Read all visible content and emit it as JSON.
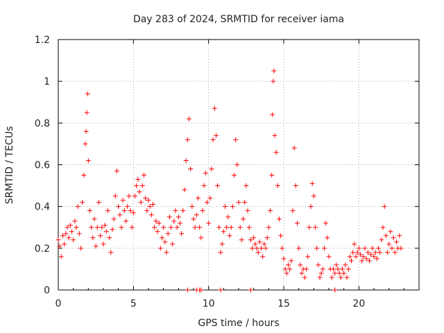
{
  "chart_data": {
    "type": "scatter",
    "title": "Day 283 of 2024, SRMTID for receiver iama",
    "xlabel": "GPS time / hours",
    "ylabel": "SRMTID / TECUs",
    "xlim": [
      0,
      24
    ],
    "ylim": [
      0,
      1.2
    ],
    "xticks": [
      0,
      5,
      10,
      15,
      20
    ],
    "xtick_labels": [
      "0",
      "5",
      "10",
      "15",
      "20"
    ],
    "yticks": [
      0,
      0.2,
      0.4,
      0.6,
      0.8,
      1.0,
      1.2
    ],
    "ytick_labels": [
      "0",
      "0.2",
      "0.4",
      "0.6",
      "0.8",
      "1",
      "1.2"
    ],
    "grid": true,
    "marker": "+",
    "marker_color": "#ff0000",
    "series": [
      {
        "name": "SRMTID",
        "points": [
          [
            0.0,
            0.24
          ],
          [
            0.1,
            0.21
          ],
          [
            0.2,
            0.16
          ],
          [
            0.3,
            0.26
          ],
          [
            0.4,
            0.22
          ],
          [
            0.5,
            0.27
          ],
          [
            0.6,
            0.3
          ],
          [
            0.7,
            0.25
          ],
          [
            0.8,
            0.31
          ],
          [
            0.9,
            0.28
          ],
          [
            1.0,
            0.24
          ],
          [
            1.1,
            0.33
          ],
          [
            1.2,
            0.3
          ],
          [
            1.3,
            0.4
          ],
          [
            1.4,
            0.27
          ],
          [
            1.5,
            0.2
          ],
          [
            1.6,
            0.42
          ],
          [
            1.7,
            0.55
          ],
          [
            1.8,
            0.7
          ],
          [
            1.85,
            0.76
          ],
          [
            1.9,
            0.85
          ],
          [
            1.95,
            0.94
          ],
          [
            2.0,
            0.62
          ],
          [
            2.1,
            0.38
          ],
          [
            2.2,
            0.3
          ],
          [
            2.3,
            0.25
          ],
          [
            2.4,
            0.34
          ],
          [
            2.5,
            0.21
          ],
          [
            2.6,
            0.3
          ],
          [
            2.7,
            0.42
          ],
          [
            2.8,
            0.26
          ],
          [
            2.9,
            0.3
          ],
          [
            3.0,
            0.22
          ],
          [
            3.1,
            0.31
          ],
          [
            3.2,
            0.28
          ],
          [
            3.3,
            0.38
          ],
          [
            3.4,
            0.25
          ],
          [
            3.5,
            0.18
          ],
          [
            3.6,
            0.29
          ],
          [
            3.7,
            0.34
          ],
          [
            3.8,
            0.45
          ],
          [
            3.9,
            0.57
          ],
          [
            4.0,
            0.4
          ],
          [
            4.1,
            0.36
          ],
          [
            4.2,
            0.3
          ],
          [
            4.3,
            0.43
          ],
          [
            4.4,
            0.38
          ],
          [
            4.5,
            0.33
          ],
          [
            4.6,
            0.4
          ],
          [
            4.7,
            0.45
          ],
          [
            4.8,
            0.38
          ],
          [
            4.9,
            0.3
          ],
          [
            5.0,
            0.37
          ],
          [
            5.1,
            0.45
          ],
          [
            5.2,
            0.5
          ],
          [
            5.3,
            0.53
          ],
          [
            5.4,
            0.47
          ],
          [
            5.5,
            0.42
          ],
          [
            5.6,
            0.5
          ],
          [
            5.7,
            0.55
          ],
          [
            5.8,
            0.44
          ],
          [
            5.9,
            0.38
          ],
          [
            6.0,
            0.43
          ],
          [
            6.1,
            0.4
          ],
          [
            6.2,
            0.36
          ],
          [
            6.3,
            0.41
          ],
          [
            6.4,
            0.3
          ],
          [
            6.5,
            0.33
          ],
          [
            6.6,
            0.28
          ],
          [
            6.7,
            0.32
          ],
          [
            6.8,
            0.2
          ],
          [
            6.9,
            0.25
          ],
          [
            7.0,
            0.3
          ],
          [
            7.1,
            0.23
          ],
          [
            7.2,
            0.18
          ],
          [
            7.3,
            0.27
          ],
          [
            7.4,
            0.35
          ],
          [
            7.5,
            0.3
          ],
          [
            7.6,
            0.22
          ],
          [
            7.7,
            0.33
          ],
          [
            7.8,
            0.38
          ],
          [
            7.9,
            0.3
          ],
          [
            8.0,
            0.35
          ],
          [
            8.1,
            0.32
          ],
          [
            8.2,
            0.27
          ],
          [
            8.3,
            0.38
          ],
          [
            8.4,
            0.48
          ],
          [
            8.5,
            0.62
          ],
          [
            8.6,
            0.72
          ],
          [
            8.7,
            0.82
          ],
          [
            8.8,
            0.58
          ],
          [
            8.9,
            0.4
          ],
          [
            9.0,
            0.34
          ],
          [
            9.1,
            0.3
          ],
          [
            9.2,
            0.36
          ],
          [
            9.3,
            0.44
          ],
          [
            9.4,
            0.3
          ],
          [
            9.5,
            0.25
          ],
          [
            9.6,
            0.38
          ],
          [
            9.7,
            0.5
          ],
          [
            9.8,
            0.56
          ],
          [
            9.9,
            0.42
          ],
          [
            10.0,
            0.32
          ],
          [
            10.1,
            0.44
          ],
          [
            10.2,
            0.58
          ],
          [
            10.3,
            0.72
          ],
          [
            10.4,
            0.87
          ],
          [
            10.5,
            0.74
          ],
          [
            10.6,
            0.5
          ],
          [
            10.7,
            0.3
          ],
          [
            10.8,
            0.18
          ],
          [
            10.9,
            0.22
          ],
          [
            11.0,
            0.28
          ],
          [
            11.1,
            0.4
          ],
          [
            11.2,
            0.3
          ],
          [
            11.3,
            0.35
          ],
          [
            11.4,
            0.26
          ],
          [
            11.5,
            0.3
          ],
          [
            11.6,
            0.4
          ],
          [
            11.7,
            0.55
          ],
          [
            11.8,
            0.72
          ],
          [
            11.9,
            0.6
          ],
          [
            12.0,
            0.42
          ],
          [
            12.1,
            0.3
          ],
          [
            12.2,
            0.24
          ],
          [
            12.3,
            0.34
          ],
          [
            12.4,
            0.42
          ],
          [
            12.5,
            0.5
          ],
          [
            12.6,
            0.38
          ],
          [
            12.7,
            0.3
          ],
          [
            12.8,
            0.24
          ],
          [
            12.9,
            0.2
          ],
          [
            13.0,
            0.25
          ],
          [
            13.1,
            0.22
          ],
          [
            13.2,
            0.2
          ],
          [
            13.3,
            0.18
          ],
          [
            13.4,
            0.23
          ],
          [
            13.5,
            0.2
          ],
          [
            13.6,
            0.16
          ],
          [
            13.7,
            0.22
          ],
          [
            13.8,
            0.2
          ],
          [
            13.9,
            0.25
          ],
          [
            14.0,
            0.3
          ],
          [
            14.1,
            0.38
          ],
          [
            14.2,
            0.55
          ],
          [
            14.25,
            0.84
          ],
          [
            14.3,
            1.0
          ],
          [
            14.35,
            1.05
          ],
          [
            14.4,
            0.74
          ],
          [
            14.5,
            0.66
          ],
          [
            14.6,
            0.5
          ],
          [
            14.7,
            0.34
          ],
          [
            14.8,
            0.26
          ],
          [
            14.9,
            0.2
          ],
          [
            15.0,
            0.15
          ],
          [
            15.1,
            0.1
          ],
          [
            15.2,
            0.08
          ],
          [
            15.3,
            0.12
          ],
          [
            15.4,
            0.1
          ],
          [
            15.5,
            0.14
          ],
          [
            15.6,
            0.38
          ],
          [
            15.7,
            0.68
          ],
          [
            15.8,
            0.5
          ],
          [
            15.9,
            0.32
          ],
          [
            16.0,
            0.2
          ],
          [
            16.1,
            0.12
          ],
          [
            16.2,
            0.08
          ],
          [
            16.3,
            0.1
          ],
          [
            16.4,
            0.06
          ],
          [
            16.5,
            0.1
          ],
          [
            16.6,
            0.16
          ],
          [
            16.7,
            0.3
          ],
          [
            16.8,
            0.4
          ],
          [
            16.9,
            0.51
          ],
          [
            17.0,
            0.45
          ],
          [
            17.1,
            0.3
          ],
          [
            17.2,
            0.2
          ],
          [
            17.3,
            0.12
          ],
          [
            17.4,
            0.06
          ],
          [
            17.5,
            0.08
          ],
          [
            17.6,
            0.1
          ],
          [
            17.7,
            0.2
          ],
          [
            17.8,
            0.32
          ],
          [
            17.9,
            0.25
          ],
          [
            18.0,
            0.16
          ],
          [
            18.1,
            0.1
          ],
          [
            18.2,
            0.06
          ],
          [
            18.3,
            0.1
          ],
          [
            18.4,
            0.08
          ],
          [
            18.5,
            0.12
          ],
          [
            18.6,
            0.1
          ],
          [
            18.7,
            0.08
          ],
          [
            18.8,
            0.06
          ],
          [
            18.9,
            0.1
          ],
          [
            19.0,
            0.08
          ],
          [
            19.1,
            0.12
          ],
          [
            19.2,
            0.06
          ],
          [
            19.3,
            0.1
          ],
          [
            19.4,
            0.16
          ],
          [
            19.5,
            0.14
          ],
          [
            19.6,
            0.18
          ],
          [
            19.7,
            0.22
          ],
          [
            19.8,
            0.16
          ],
          [
            19.9,
            0.18
          ],
          [
            20.0,
            0.2
          ],
          [
            20.1,
            0.17
          ],
          [
            20.2,
            0.14
          ],
          [
            20.3,
            0.16
          ],
          [
            20.4,
            0.2
          ],
          [
            20.5,
            0.15
          ],
          [
            20.6,
            0.18
          ],
          [
            20.7,
            0.14
          ],
          [
            20.8,
            0.17
          ],
          [
            20.9,
            0.2
          ],
          [
            21.0,
            0.16
          ],
          [
            21.1,
            0.18
          ],
          [
            21.2,
            0.15
          ],
          [
            21.3,
            0.2
          ],
          [
            21.4,
            0.18
          ],
          [
            21.5,
            0.24
          ],
          [
            21.6,
            0.3
          ],
          [
            21.7,
            0.4
          ],
          [
            21.8,
            0.26
          ],
          [
            21.9,
            0.18
          ],
          [
            22.0,
            0.22
          ],
          [
            22.1,
            0.28
          ],
          [
            22.2,
            0.2
          ],
          [
            22.3,
            0.25
          ],
          [
            22.4,
            0.18
          ],
          [
            22.5,
            0.23
          ],
          [
            22.6,
            0.2
          ],
          [
            22.7,
            0.26
          ],
          [
            22.8,
            0.2
          ],
          [
            8.6,
            0.0
          ],
          [
            9.2,
            0.0
          ],
          [
            9.4,
            0.0
          ],
          [
            9.5,
            0.0
          ],
          [
            10.8,
            0.0
          ],
          [
            12.8,
            0.0
          ],
          [
            18.4,
            0.0
          ]
        ]
      }
    ]
  }
}
